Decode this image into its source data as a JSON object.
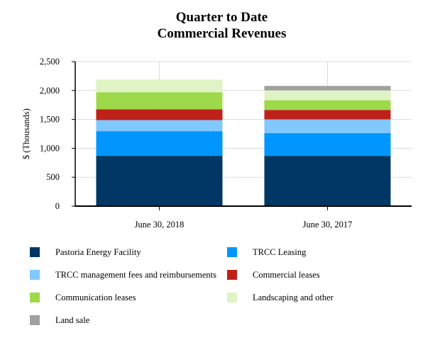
{
  "chart_data": {
    "type": "bar",
    "stacked": true,
    "title": [
      "Quarter to Date",
      "Commercial Revenues"
    ],
    "xlabel": "",
    "ylabel": "$ (Thousands)",
    "ylim": [
      0,
      2500
    ],
    "yticks": [
      0,
      500,
      1000,
      1500,
      2000,
      2500
    ],
    "ytick_labels": [
      "0",
      "500",
      "1,000",
      "1,500",
      "2,000",
      "2,500"
    ],
    "grid": true,
    "legend_position": "bottom",
    "categories": [
      "June 30, 2018",
      "June 30, 2017"
    ],
    "series": [
      {
        "name": "Pastoria Energy Facility",
        "color": "#003764",
        "values": [
          869,
          869
        ]
      },
      {
        "name": "TRCC Leasing",
        "color": "#0096FF",
        "values": [
          428,
          395
        ]
      },
      {
        "name": "TRCC management fees and reimbursements",
        "color": "#80C8FF",
        "values": [
          192,
          237
        ]
      },
      {
        "name": "Commercial leases",
        "color": "#C0201A",
        "values": [
          187,
          163
        ]
      },
      {
        "name": "Communication leases",
        "color": "#9ED94A",
        "values": [
          294,
          167
        ]
      },
      {
        "name": "Landscaping and other",
        "color": "#DFF3C4",
        "values": [
          220,
          171
        ]
      },
      {
        "name": "Land sale",
        "color": "#A0A0A0",
        "values": [
          0,
          78
        ]
      }
    ]
  }
}
